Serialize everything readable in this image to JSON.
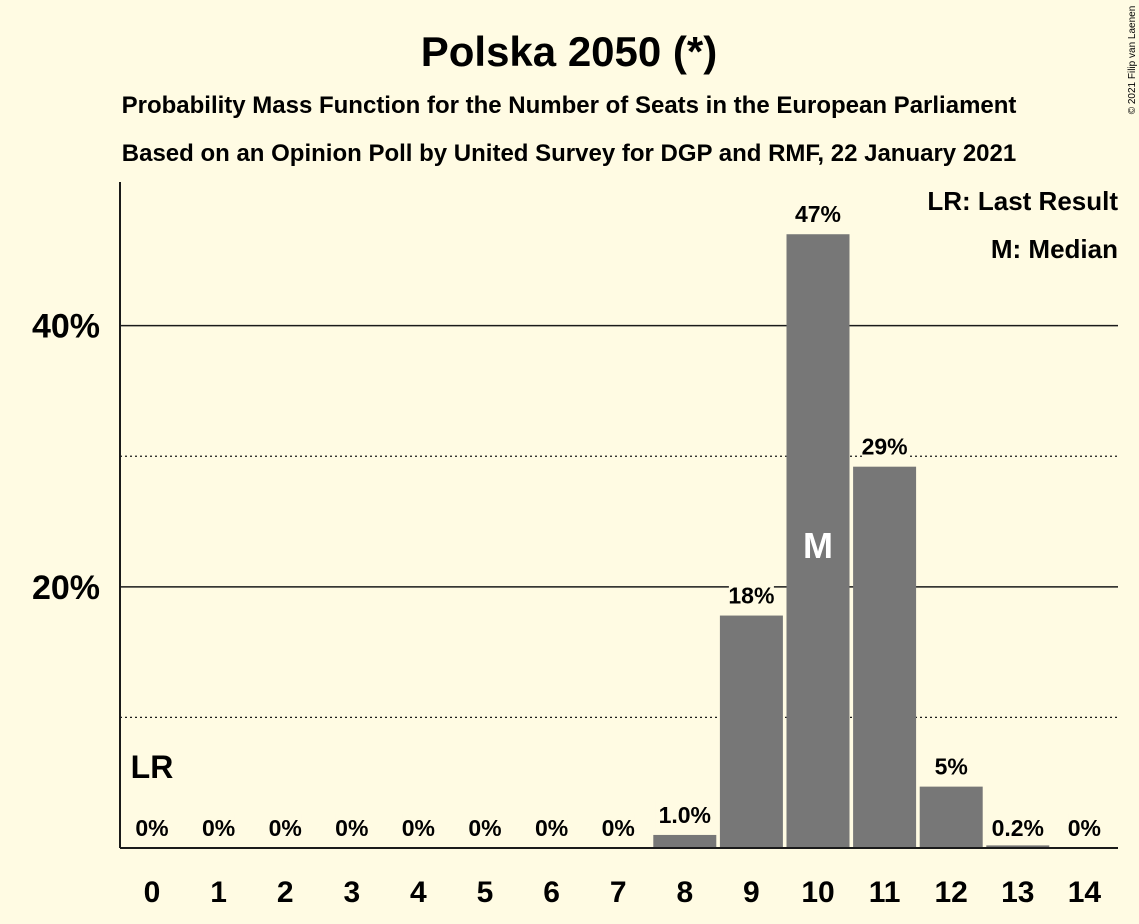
{
  "chart_data": {
    "type": "bar",
    "title": "Polska 2050 (*)",
    "subtitle": "Probability Mass Function for the Number of Seats in the European Parliament",
    "subtitle2": "Based on an Opinion Poll by United Survey for DGP and RMF, 22 January 2021",
    "copyright": "© 2021 Filip van Laenen",
    "categories": [
      "0",
      "1",
      "2",
      "3",
      "4",
      "5",
      "6",
      "7",
      "8",
      "9",
      "10",
      "11",
      "12",
      "13",
      "14"
    ],
    "values": [
      0,
      0,
      0,
      0,
      0,
      0,
      0,
      0,
      1.0,
      17.8,
      47.0,
      29.2,
      4.7,
      0.2,
      0
    ],
    "data_labels": [
      "0%",
      "0%",
      "0%",
      "0%",
      "0%",
      "0%",
      "0%",
      "0%",
      "1.0%",
      "18%",
      "47%",
      "29%",
      "5%",
      "0.2%",
      "0%"
    ],
    "ylim": [
      0,
      51
    ],
    "yticks": [
      {
        "value": 20,
        "label": "20%",
        "style": "solid"
      },
      {
        "value": 40,
        "label": "40%",
        "style": "solid"
      }
    ],
    "minor_gridlines": [
      10,
      30
    ],
    "last_result": {
      "category": "0",
      "label": "LR"
    },
    "median": {
      "category": "10",
      "label": "M"
    },
    "legend": {
      "position": "top-right",
      "items": [
        "LR: Last Result",
        "M: Median"
      ]
    },
    "colors": {
      "bar": "#777777",
      "background": "#fffbe3",
      "text": "#1a1a1a",
      "median_text": "#ffffff"
    },
    "grid": true
  }
}
